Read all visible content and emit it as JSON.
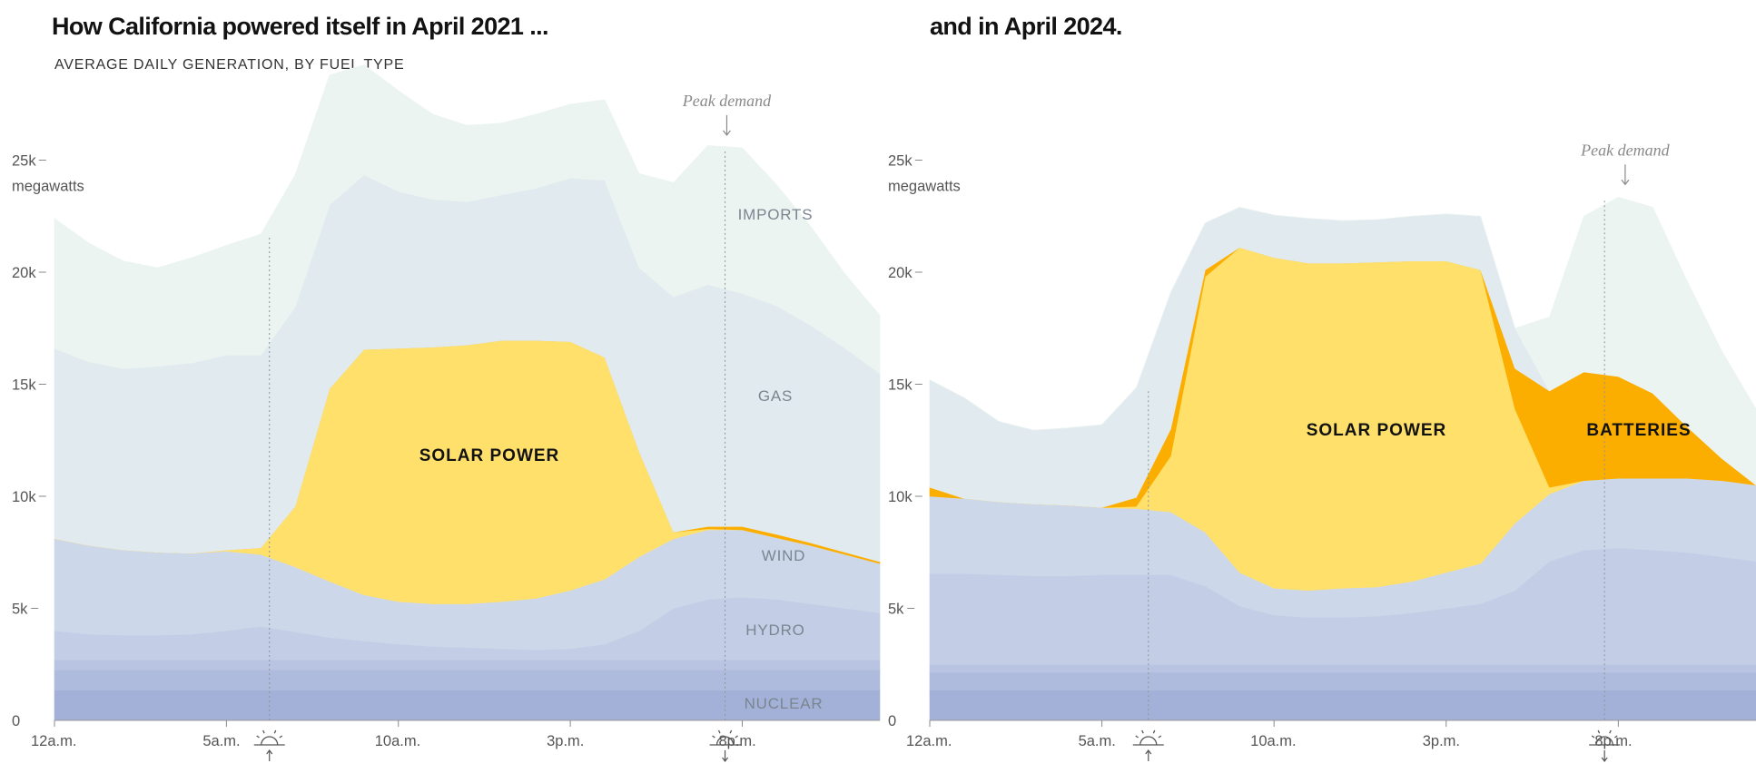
{
  "chart_data": [
    {
      "type": "area",
      "title": "How California powered itself in April 2021 ...",
      "subtitle": "AVERAGE DAILY GENERATION, BY FUEL TYPE",
      "unit": "megawatts",
      "y_ticks": [
        {
          "v": 0,
          "label": "0"
        },
        {
          "v": 5000,
          "label": "5k"
        },
        {
          "v": 10000,
          "label": "10k"
        },
        {
          "v": 15000,
          "label": "15k"
        },
        {
          "v": 20000,
          "label": "20k"
        },
        {
          "v": 25000,
          "label": "25k"
        }
      ],
      "x_ticks": [
        {
          "h": 0,
          "label": "12a.m."
        },
        {
          "h": 5,
          "label": "5a.m."
        },
        {
          "h": 10,
          "label": "10a.m."
        },
        {
          "h": 15,
          "label": "3p.m."
        },
        {
          "h": 20,
          "label": "8p.m."
        }
      ],
      "ylim": [
        0,
        27500
      ],
      "xlim": [
        0,
        24
      ],
      "sunrise_hour": 6.25,
      "sunset_hour": 19.5,
      "peak_hour": 19.55,
      "peak_label": "Peak demand",
      "labels": {
        "imports": "IMPORTS",
        "gas": "GAS",
        "wind": "WIND",
        "hydro": "HYDRO",
        "nuclear": "NUCLEAR",
        "solar": "SOLAR POWER"
      },
      "x_hours": [
        0,
        1,
        2,
        3,
        4,
        5,
        6,
        7,
        8,
        9,
        10,
        11,
        12,
        13,
        14,
        15,
        16,
        17,
        18,
        19,
        20,
        21,
        22,
        23,
        24
      ],
      "series": [
        {
          "key": "nuclear",
          "color": "#a3b1d8",
          "values": [
            1350,
            1350,
            1350,
            1350,
            1350,
            1350,
            1350,
            1350,
            1350,
            1350,
            1350,
            1350,
            1350,
            1350,
            1350,
            1350,
            1350,
            1350,
            1350,
            1350,
            1350,
            1350,
            1350,
            1350,
            1350
          ]
        },
        {
          "key": "other1",
          "color": "#aebbdc",
          "values": [
            900,
            900,
            900,
            900,
            900,
            900,
            900,
            900,
            900,
            900,
            900,
            900,
            900,
            900,
            900,
            900,
            900,
            900,
            900,
            900,
            900,
            900,
            900,
            900,
            900
          ]
        },
        {
          "key": "other2",
          "color": "#b9c4e2",
          "values": [
            450,
            450,
            450,
            450,
            450,
            450,
            450,
            450,
            450,
            450,
            450,
            450,
            450,
            450,
            450,
            450,
            450,
            450,
            450,
            450,
            450,
            450,
            450,
            450,
            450
          ]
        },
        {
          "key": "hydro",
          "color": "#c3cde6",
          "values": [
            1300,
            1150,
            1100,
            1100,
            1150,
            1300,
            1500,
            1250,
            1000,
            850,
            700,
            600,
            550,
            500,
            450,
            500,
            700,
            1300,
            2300,
            2700,
            2800,
            2700,
            2500,
            2300,
            2100
          ]
        },
        {
          "key": "wind",
          "color": "#cdd7ea",
          "values": [
            4100,
            3950,
            3800,
            3700,
            3600,
            3550,
            3200,
            2900,
            2500,
            2050,
            1900,
            1900,
            1950,
            2100,
            2300,
            2600,
            2900,
            3300,
            3100,
            3100,
            3000,
            2750,
            2600,
            2400,
            2200
          ]
        },
        {
          "key": "solar",
          "color": "#ffe06b",
          "values": [
            0,
            0,
            0,
            0,
            0,
            50,
            300,
            2700,
            8600,
            10950,
            11300,
            11450,
            11550,
            11650,
            11500,
            11100,
            9900,
            4700,
            300,
            50,
            0,
            0,
            0,
            0,
            0
          ]
        },
        {
          "key": "batteries",
          "color": "#fcae00",
          "values": [
            0,
            0,
            0,
            0,
            0,
            0,
            0,
            0,
            0,
            0,
            0,
            0,
            0,
            0,
            0,
            0,
            0,
            0,
            0,
            100,
            150,
            150,
            120,
            100,
            80
          ]
        },
        {
          "key": "gas",
          "color": "#e1ebef",
          "values": [
            8500,
            8200,
            8100,
            8300,
            8500,
            8700,
            8600,
            8900,
            8200,
            7800,
            7000,
            6600,
            6400,
            6500,
            6800,
            7300,
            7900,
            8200,
            10500,
            10800,
            10400,
            10200,
            9700,
            9100,
            8400
          ]
        },
        {
          "key": "imports",
          "color": "#ecf4f1",
          "values": [
            5800,
            5300,
            4800,
            4400,
            4700,
            4900,
            5400,
            5900,
            5800,
            4900,
            4500,
            3800,
            3400,
            3200,
            3300,
            3300,
            3600,
            4200,
            5100,
            6200,
            6500,
            5400,
            4400,
            3300,
            2600
          ]
        }
      ]
    },
    {
      "type": "area",
      "title": "and in April 2024.",
      "unit": "megawatts",
      "y_ticks": [
        {
          "v": 0,
          "label": "0"
        },
        {
          "v": 5000,
          "label": "5k"
        },
        {
          "v": 10000,
          "label": "10k"
        },
        {
          "v": 15000,
          "label": "15k"
        },
        {
          "v": 20000,
          "label": "20k"
        },
        {
          "v": 25000,
          "label": "25k"
        }
      ],
      "x_ticks": [
        {
          "h": 0,
          "label": "12a.m."
        },
        {
          "h": 5,
          "label": "5a.m."
        },
        {
          "h": 10,
          "label": "10a.m."
        },
        {
          "h": 15,
          "label": "3p.m."
        },
        {
          "h": 20,
          "label": "8p.m."
        }
      ],
      "ylim": [
        0,
        27500
      ],
      "xlim": [
        0,
        24
      ],
      "sunrise_hour": 6.35,
      "sunset_hour": 19.6,
      "peak_hour": 20.2,
      "peak_label": "Peak demand",
      "labels": {
        "solar": "SOLAR POWER",
        "batteries": "BATTERIES"
      },
      "x_hours": [
        0,
        1,
        2,
        3,
        4,
        5,
        6,
        7,
        8,
        9,
        10,
        11,
        12,
        13,
        14,
        15,
        16,
        17,
        18,
        19,
        20,
        21,
        22,
        23,
        24
      ],
      "series": [
        {
          "key": "nuclear",
          "color": "#a3b1d8",
          "values": [
            1350,
            1350,
            1350,
            1350,
            1350,
            1350,
            1350,
            1350,
            1350,
            1350,
            1350,
            1350,
            1350,
            1350,
            1350,
            1350,
            1350,
            1350,
            1350,
            1350,
            1350,
            1350,
            1350,
            1350,
            1350
          ]
        },
        {
          "key": "other1",
          "color": "#aebbdc",
          "values": [
            800,
            800,
            800,
            800,
            800,
            800,
            800,
            800,
            800,
            800,
            800,
            800,
            800,
            800,
            800,
            800,
            800,
            800,
            800,
            800,
            800,
            800,
            800,
            800,
            800
          ]
        },
        {
          "key": "other2",
          "color": "#b9c4e2",
          "values": [
            350,
            350,
            350,
            350,
            350,
            350,
            350,
            350,
            350,
            350,
            350,
            350,
            350,
            350,
            350,
            350,
            350,
            350,
            350,
            350,
            350,
            350,
            350,
            350,
            350
          ]
        },
        {
          "key": "hydro",
          "color": "#c3cde6",
          "values": [
            4050,
            4050,
            4000,
            3950,
            3950,
            4000,
            4000,
            4000,
            3500,
            2600,
            2200,
            2100,
            2100,
            2150,
            2300,
            2500,
            2700,
            3300,
            4600,
            5100,
            5200,
            5100,
            5000,
            4800,
            4600
          ]
        },
        {
          "key": "wind",
          "color": "#cdd7ea",
          "values": [
            3450,
            3350,
            3250,
            3200,
            3150,
            3000,
            2950,
            2800,
            2400,
            1500,
            1200,
            1200,
            1300,
            1300,
            1400,
            1600,
            1800,
            3000,
            3000,
            3100,
            3100,
            3200,
            3300,
            3400,
            3400
          ]
        },
        {
          "key": "solar",
          "color": "#ffe06b",
          "values": [
            0,
            0,
            0,
            0,
            0,
            0,
            100,
            2500,
            11400,
            14500,
            14750,
            14600,
            14500,
            14500,
            14300,
            13900,
            13100,
            5100,
            300,
            0,
            0,
            0,
            0,
            0,
            0
          ]
        },
        {
          "key": "batteries",
          "color": "#fcae00",
          "values": [
            400,
            0,
            0,
            0,
            0,
            0,
            400,
            1200,
            300,
            0,
            0,
            0,
            0,
            0,
            0,
            0,
            0,
            1800,
            4300,
            4850,
            4550,
            3800,
            2300,
            1000,
            0
          ]
        },
        {
          "key": "gas",
          "color": "#e1ebef",
          "values": [
            4800,
            4500,
            3600,
            3300,
            3450,
            3700,
            4900,
            6100,
            2100,
            1800,
            1900,
            2000,
            1900,
            1900,
            2000,
            2100,
            2400,
            1800,
            0,
            0,
            0,
            0,
            0,
            0,
            0
          ]
        },
        {
          "key": "imports",
          "color": "#ecf4f1",
          "values": [
            0,
            0,
            0,
            0,
            0,
            0,
            0,
            0,
            0,
            0,
            0,
            0,
            0,
            0,
            0,
            0,
            0,
            0,
            3300,
            6950,
            8000,
            8300,
            6500,
            4800,
            3400
          ]
        }
      ]
    }
  ]
}
